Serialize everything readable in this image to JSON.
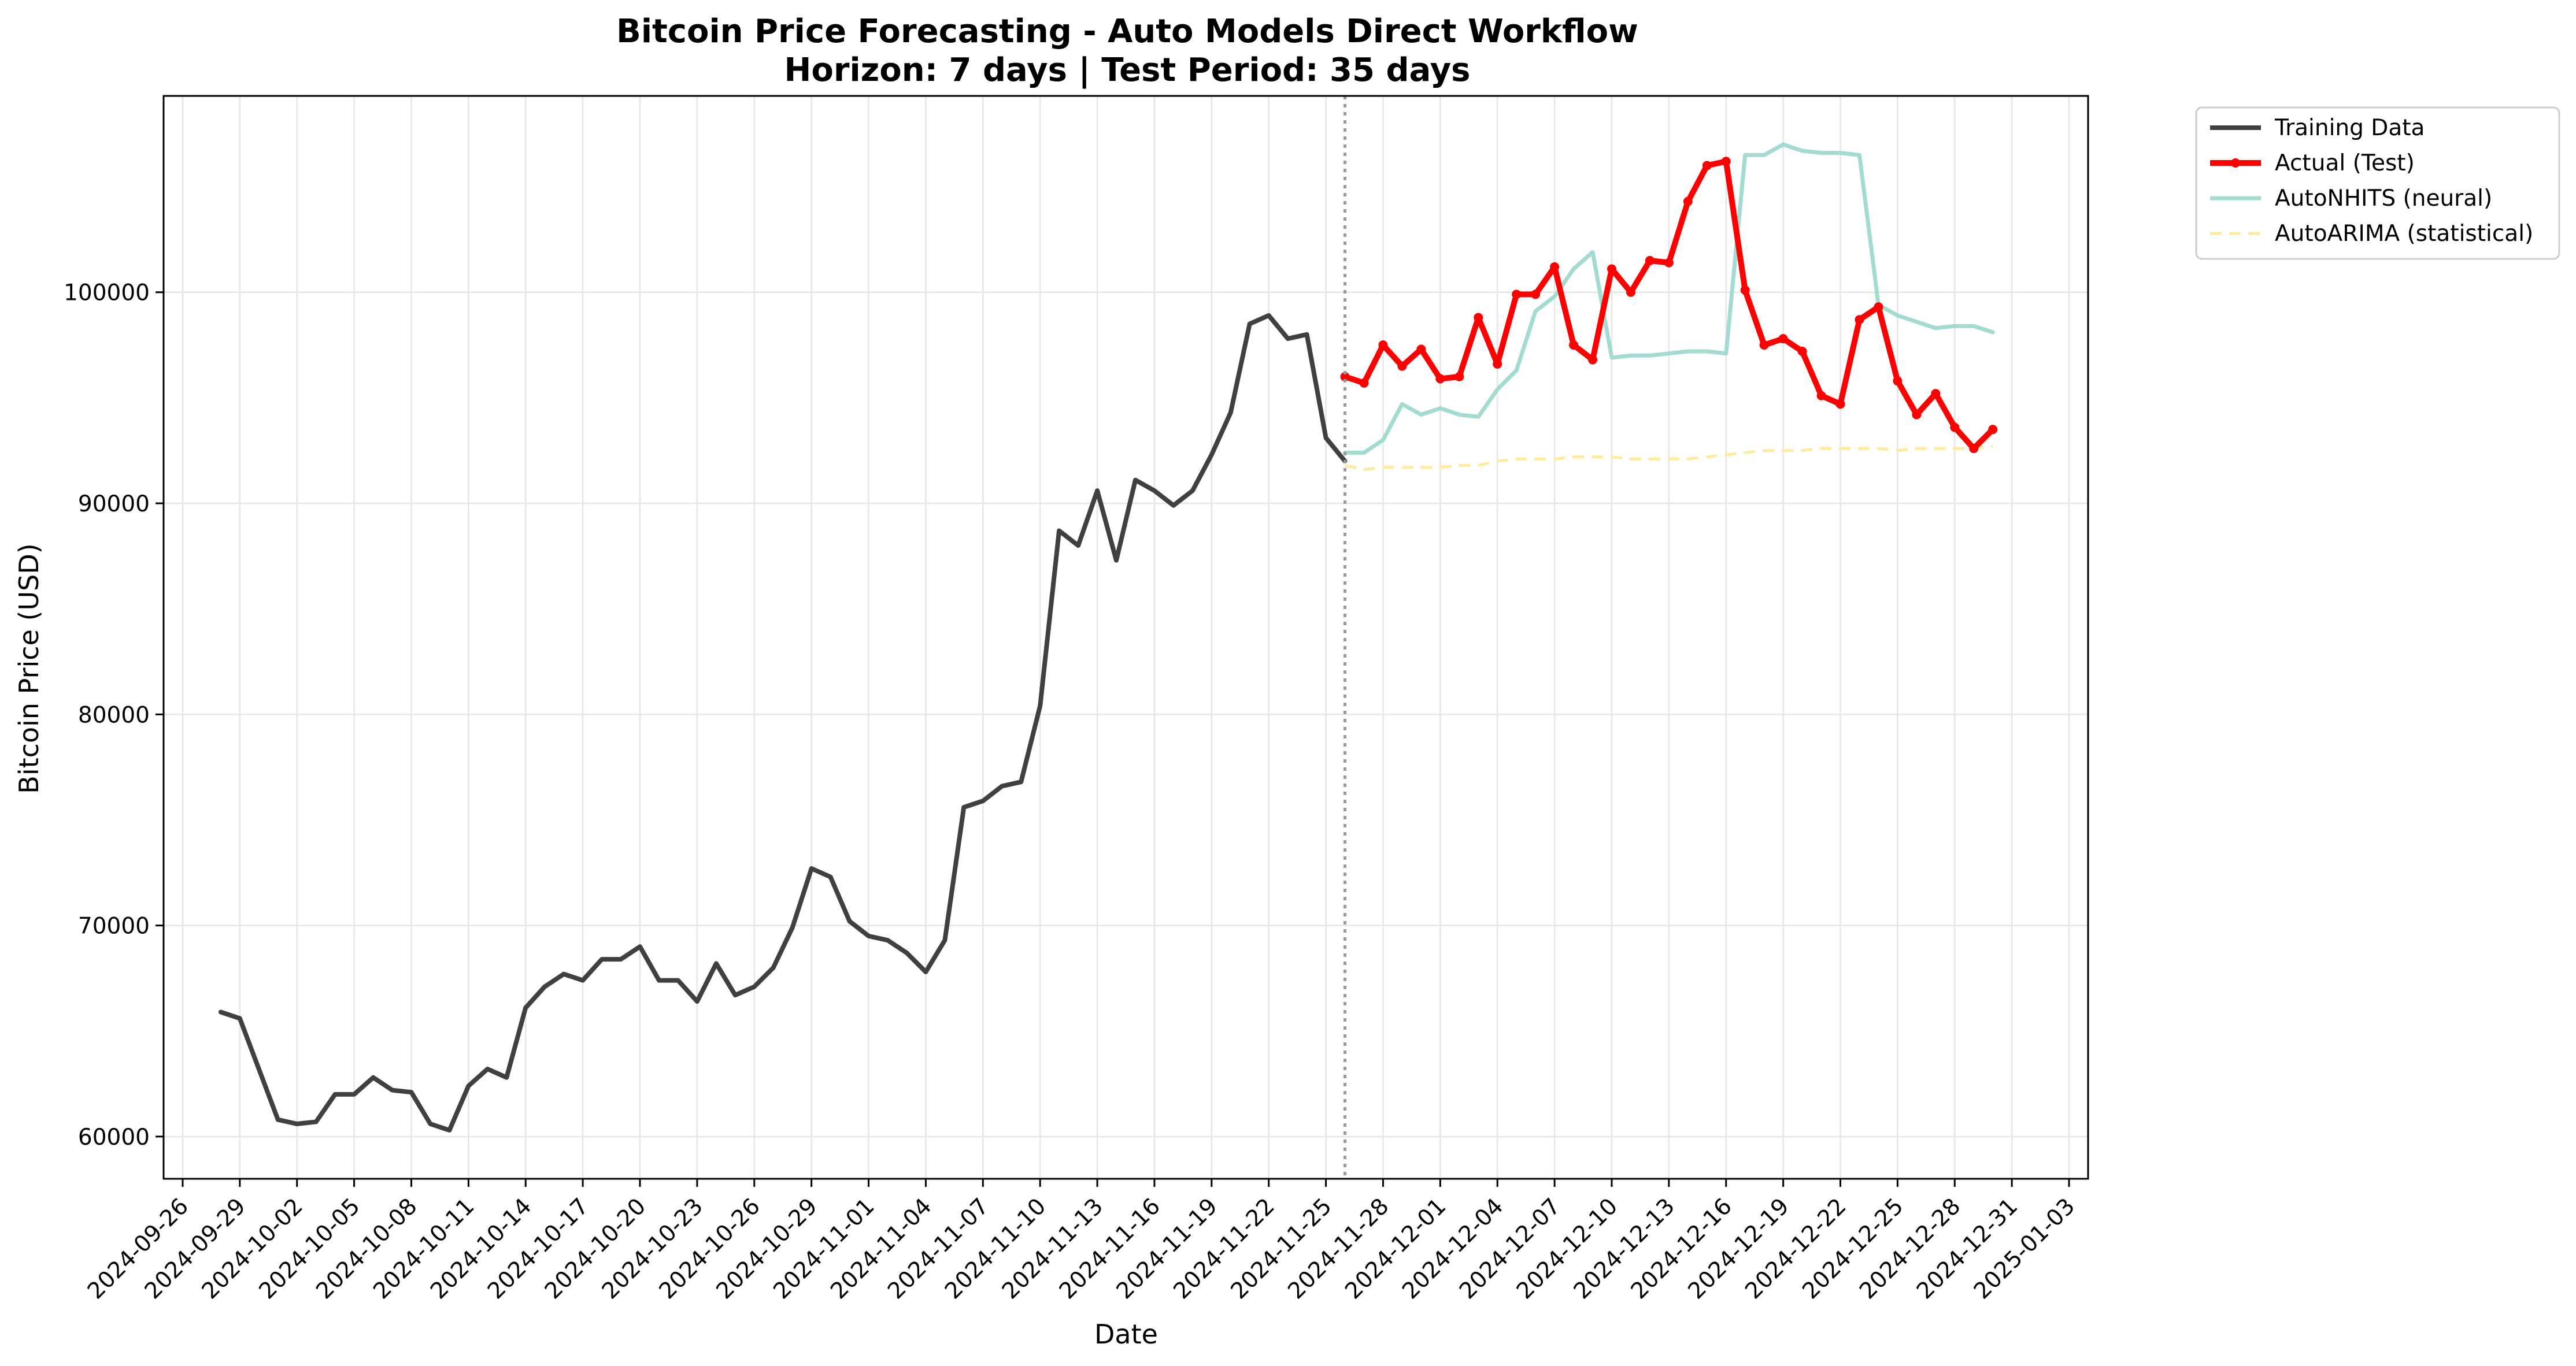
{
  "chart_data": {
    "type": "line",
    "title": "Bitcoin Price Forecasting - Auto Models Direct Workflow",
    "subtitle": "Horizon: 7 days | Test Period: 35 days",
    "xlabel": "Date",
    "ylabel": "Bitcoin Price (USD)",
    "x_type": "date",
    "xlim": [
      "2024-09-25",
      "2025-01-04"
    ],
    "ylim": [
      58000,
      109300
    ],
    "grid": true,
    "legend_position": "outside-top-right",
    "train_test_split": "2024-11-26",
    "x_ticks": [
      "2024-09-26",
      "2024-09-29",
      "2024-10-02",
      "2024-10-05",
      "2024-10-08",
      "2024-10-11",
      "2024-10-14",
      "2024-10-17",
      "2024-10-20",
      "2024-10-23",
      "2024-10-26",
      "2024-10-29",
      "2024-11-01",
      "2024-11-04",
      "2024-11-07",
      "2024-11-10",
      "2024-11-13",
      "2024-11-16",
      "2024-11-19",
      "2024-11-22",
      "2024-11-25",
      "2024-11-28",
      "2024-12-01",
      "2024-12-04",
      "2024-12-07",
      "2024-12-10",
      "2024-12-13",
      "2024-12-16",
      "2024-12-19",
      "2024-12-22",
      "2024-12-25",
      "2024-12-28",
      "2024-12-31",
      "2025-01-03"
    ],
    "y_ticks": [
      60000,
      70000,
      80000,
      90000,
      100000
    ],
    "series": [
      {
        "name": "Training Data",
        "color": "#404040",
        "style": "solid",
        "start_date": "2024-09-28",
        "values": [
          65900,
          65600,
          63200,
          60800,
          60600,
          60700,
          62000,
          62000,
          62800,
          62200,
          62100,
          60600,
          60300,
          62400,
          63200,
          62800,
          66100,
          67100,
          67700,
          67400,
          68400,
          68400,
          69000,
          67400,
          67400,
          66400,
          68200,
          66700,
          67100,
          68000,
          69900,
          72700,
          72300,
          70200,
          69500,
          69300,
          68700,
          67800,
          69300,
          75600,
          75900,
          76600,
          76800,
          80400,
          88700,
          88000,
          90600,
          87300,
          91100,
          90600,
          89900,
          90600,
          92300,
          94300,
          98500,
          98900,
          97800,
          98000,
          93100,
          92000
        ]
      },
      {
        "name": "Actual (Test)",
        "color": "#ff0000",
        "style": "solid-markers",
        "start_date": "2024-11-26",
        "values": [
          96000,
          95700,
          97500,
          96500,
          97300,
          95900,
          96000,
          98800,
          96600,
          99900,
          99900,
          101200,
          97500,
          96800,
          101100,
          100000,
          101500,
          101400,
          104300,
          106000,
          106200,
          100100,
          97500,
          97800,
          97200,
          95100,
          94700,
          98700,
          99300,
          95800,
          94200,
          95200,
          93600,
          92600,
          93500
        ]
      },
      {
        "name": "AutoNHITS (neural)",
        "color": "#a3dbd1",
        "style": "solid",
        "start_date": "2024-11-26",
        "values": [
          92400,
          92400,
          93000,
          94700,
          94200,
          94500,
          94200,
          94100,
          95400,
          96300,
          99100,
          99800,
          101100,
          101900,
          96900,
          97000,
          97000,
          97100,
          97200,
          97200,
          97100,
          106500,
          106500,
          107000,
          106700,
          106600,
          106600,
          106500,
          99400,
          98900,
          98600,
          98300,
          98400,
          98400,
          98100
        ]
      },
      {
        "name": "AutoARIMA (statistical)",
        "color": "#ffeb9e",
        "style": "dashed",
        "start_date": "2024-11-26",
        "values": [
          91800,
          91600,
          91700,
          91700,
          91700,
          91700,
          91800,
          91800,
          92000,
          92100,
          92100,
          92100,
          92200,
          92200,
          92200,
          92100,
          92100,
          92100,
          92100,
          92200,
          92300,
          92400,
          92500,
          92500,
          92500,
          92600,
          92600,
          92600,
          92600,
          92500,
          92600,
          92600,
          92600,
          92600,
          92700
        ]
      }
    ]
  }
}
